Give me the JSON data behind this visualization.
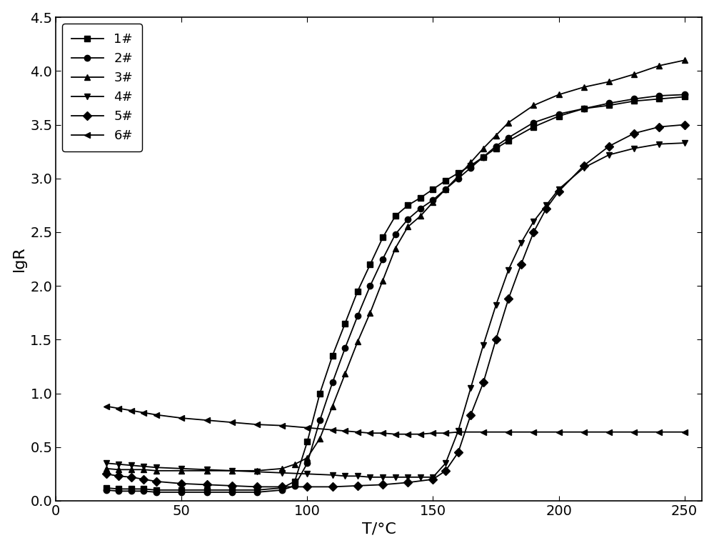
{
  "title": "",
  "xlabel": "T/°C",
  "ylabel": "lgR",
  "xlim": [
    20,
    257
  ],
  "ylim": [
    0,
    4.5
  ],
  "xticks": [
    0,
    50,
    100,
    150,
    200,
    250
  ],
  "yticks": [
    0.0,
    0.5,
    1.0,
    1.5,
    2.0,
    2.5,
    3.0,
    3.5,
    4.0,
    4.5
  ],
  "series": [
    {
      "label": "1#",
      "marker": "s",
      "x": [
        20,
        25,
        30,
        35,
        40,
        50,
        60,
        70,
        80,
        90,
        95,
        100,
        105,
        110,
        115,
        120,
        125,
        130,
        135,
        140,
        145,
        150,
        155,
        160,
        165,
        170,
        175,
        180,
        190,
        200,
        210,
        220,
        230,
        240,
        250
      ],
      "y": [
        0.12,
        0.11,
        0.11,
        0.11,
        0.1,
        0.1,
        0.1,
        0.1,
        0.1,
        0.12,
        0.18,
        0.55,
        1.0,
        1.35,
        1.65,
        1.95,
        2.2,
        2.45,
        2.65,
        2.75,
        2.82,
        2.9,
        2.98,
        3.05,
        3.12,
        3.2,
        3.28,
        3.35,
        3.48,
        3.58,
        3.65,
        3.68,
        3.72,
        3.74,
        3.76
      ]
    },
    {
      "label": "2#",
      "marker": "o",
      "x": [
        20,
        25,
        30,
        35,
        40,
        50,
        60,
        70,
        80,
        90,
        95,
        100,
        105,
        110,
        115,
        120,
        125,
        130,
        135,
        140,
        145,
        150,
        155,
        160,
        165,
        170,
        175,
        180,
        190,
        200,
        210,
        220,
        230,
        240,
        250
      ],
      "y": [
        0.1,
        0.09,
        0.09,
        0.09,
        0.08,
        0.08,
        0.08,
        0.08,
        0.08,
        0.1,
        0.14,
        0.35,
        0.75,
        1.1,
        1.42,
        1.72,
        2.0,
        2.25,
        2.48,
        2.62,
        2.72,
        2.8,
        2.9,
        3.0,
        3.1,
        3.2,
        3.3,
        3.38,
        3.52,
        3.6,
        3.65,
        3.7,
        3.74,
        3.77,
        3.78
      ]
    },
    {
      "label": "3#",
      "marker": "^",
      "x": [
        20,
        25,
        30,
        35,
        40,
        50,
        60,
        70,
        80,
        90,
        95,
        100,
        105,
        110,
        115,
        120,
        125,
        130,
        135,
        140,
        145,
        150,
        155,
        160,
        165,
        170,
        175,
        180,
        190,
        200,
        210,
        220,
        230,
        240,
        250
      ],
      "y": [
        0.3,
        0.29,
        0.29,
        0.29,
        0.28,
        0.28,
        0.28,
        0.28,
        0.28,
        0.3,
        0.34,
        0.4,
        0.58,
        0.88,
        1.18,
        1.48,
        1.75,
        2.05,
        2.35,
        2.55,
        2.65,
        2.78,
        2.9,
        3.02,
        3.15,
        3.28,
        3.4,
        3.52,
        3.68,
        3.78,
        3.85,
        3.9,
        3.97,
        4.05,
        4.1
      ]
    },
    {
      "label": "4#",
      "marker": "v",
      "x": [
        20,
        25,
        30,
        35,
        40,
        50,
        60,
        70,
        80,
        90,
        100,
        110,
        115,
        120,
        125,
        130,
        135,
        140,
        145,
        150,
        155,
        160,
        165,
        170,
        175,
        180,
        185,
        190,
        195,
        200,
        210,
        220,
        230,
        240,
        250
      ],
      "y": [
        0.35,
        0.34,
        0.33,
        0.32,
        0.31,
        0.3,
        0.29,
        0.28,
        0.27,
        0.26,
        0.25,
        0.24,
        0.23,
        0.23,
        0.22,
        0.22,
        0.22,
        0.22,
        0.22,
        0.22,
        0.35,
        0.65,
        1.05,
        1.45,
        1.82,
        2.15,
        2.4,
        2.6,
        2.75,
        2.9,
        3.1,
        3.22,
        3.28,
        3.32,
        3.33
      ]
    },
    {
      "label": "5#",
      "marker": "D",
      "x": [
        20,
        25,
        30,
        35,
        40,
        50,
        60,
        70,
        80,
        90,
        100,
        110,
        120,
        130,
        140,
        150,
        155,
        160,
        165,
        170,
        175,
        180,
        185,
        190,
        195,
        200,
        210,
        220,
        230,
        240,
        250
      ],
      "y": [
        0.25,
        0.23,
        0.22,
        0.2,
        0.18,
        0.16,
        0.15,
        0.14,
        0.13,
        0.13,
        0.13,
        0.13,
        0.14,
        0.15,
        0.17,
        0.2,
        0.28,
        0.45,
        0.8,
        1.1,
        1.5,
        1.88,
        2.2,
        2.5,
        2.72,
        2.88,
        3.12,
        3.3,
        3.42,
        3.48,
        3.5
      ]
    },
    {
      "label": "6#",
      "marker": "<",
      "x": [
        20,
        25,
        30,
        35,
        40,
        50,
        60,
        70,
        80,
        90,
        100,
        110,
        115,
        120,
        125,
        130,
        135,
        140,
        145,
        150,
        155,
        160,
        170,
        180,
        190,
        200,
        210,
        220,
        230,
        240,
        250
      ],
      "y": [
        0.88,
        0.86,
        0.84,
        0.82,
        0.8,
        0.77,
        0.75,
        0.73,
        0.71,
        0.7,
        0.68,
        0.66,
        0.65,
        0.64,
        0.63,
        0.63,
        0.62,
        0.62,
        0.62,
        0.63,
        0.63,
        0.64,
        0.64,
        0.64,
        0.64,
        0.64,
        0.64,
        0.64,
        0.64,
        0.64,
        0.64
      ]
    }
  ],
  "line_color": "#000000",
  "marker_size": 6,
  "line_width": 1.3,
  "background_color": "#ffffff",
  "legend_loc": "upper left",
  "xlabel_fontsize": 16,
  "ylabel_fontsize": 16,
  "tick_fontsize": 14,
  "legend_fontsize": 13
}
